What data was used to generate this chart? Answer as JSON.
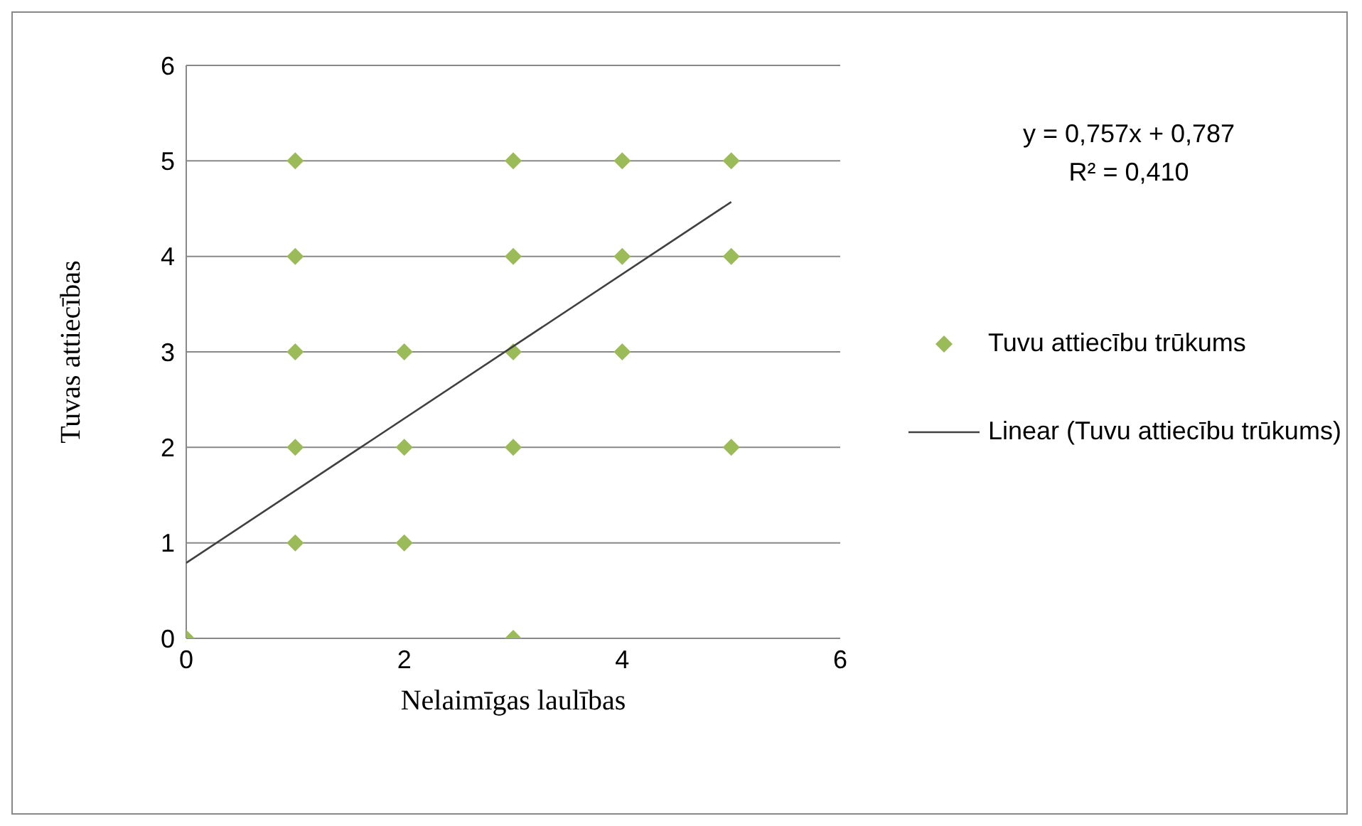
{
  "chart_data": {
    "type": "scatter",
    "xlabel": "Nelaimīgas laulības",
    "ylabel": "Tuvas attiecības",
    "annotations": [
      "y = 0,757x + 0,787",
      "R² = 0,410"
    ],
    "xlim": [
      0,
      6
    ],
    "xticks": [
      0,
      2,
      4,
      6
    ],
    "ylim": [
      0,
      6
    ],
    "yticks": [
      0,
      1,
      2,
      3,
      4,
      5,
      6
    ],
    "grid": "y",
    "legend": "right",
    "marker": "diamond",
    "series": [
      {
        "name": "Tuvu attiecību trūkums",
        "color": "#9bbb59",
        "x": [
          0,
          1,
          1,
          1,
          1,
          1,
          2,
          2,
          2,
          3,
          3,
          3,
          3,
          3,
          4,
          4,
          4,
          5,
          5,
          5
        ],
        "values": [
          0,
          5,
          4,
          3,
          2,
          1,
          3,
          2,
          1,
          5,
          4,
          3,
          2,
          0,
          5,
          4,
          3,
          5,
          4,
          2
        ]
      },
      {
        "name": "Linear (Tuvu attiecību trūkums)",
        "type": "line",
        "color": "#404040",
        "marker": "none",
        "line_style": "solid",
        "x": [
          0,
          5
        ],
        "values": [
          0.79,
          4.57
        ]
      }
    ]
  }
}
